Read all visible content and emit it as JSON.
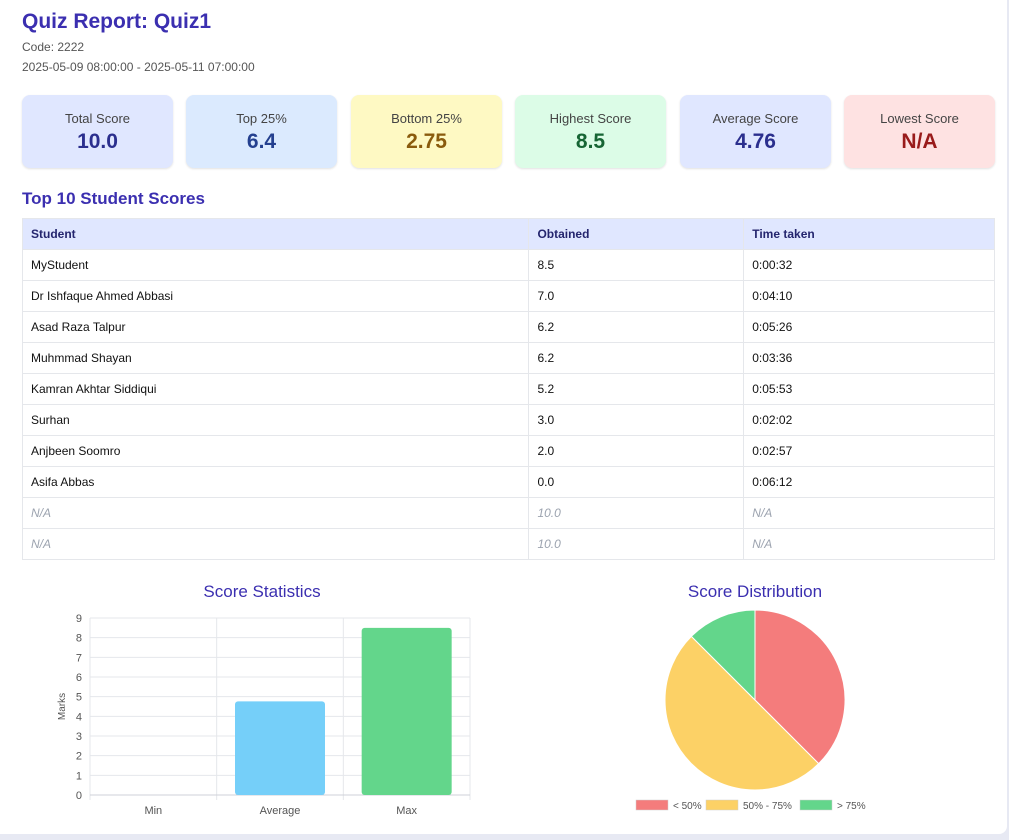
{
  "header": {
    "title": "Quiz Report: Quiz1",
    "code": "Code: 2222",
    "date_range": "2025-05-09 08:00:00 - 2025-05-11 07:00:00"
  },
  "cards": [
    {
      "label": "Total Score",
      "value": "10.0",
      "bg": "#e0e7ff",
      "color": "#2b2f8e"
    },
    {
      "label": "Top 25%",
      "value": "6.4",
      "bg": "#dbeafe",
      "color": "#24408f"
    },
    {
      "label": "Bottom 25%",
      "value": "2.75",
      "bg": "#fef9c3",
      "color": "#8a5b0d"
    },
    {
      "label": "Highest Score",
      "value": "8.5",
      "bg": "#dcfce7",
      "color": "#166534"
    },
    {
      "label": "Average Score",
      "value": "4.76",
      "bg": "#e0e7ff",
      "color": "#2b2f8e"
    },
    {
      "label": "Lowest Score",
      "value": "N/A",
      "bg": "#fee2e2",
      "color": "#991b1b"
    }
  ],
  "top_scores": {
    "title": "Top 10 Student Scores",
    "columns": [
      "Student",
      "Obtained",
      "Time taken"
    ],
    "rows": [
      [
        "MyStudent",
        "8.5",
        "0:00:32"
      ],
      [
        "Dr Ishfaque Ahmed Abbasi",
        "7.0",
        "0:04:10"
      ],
      [
        "Asad Raza Talpur",
        "6.2",
        "0:05:26"
      ],
      [
        "Muhmmad Shayan",
        "6.2",
        "0:03:36"
      ],
      [
        "Kamran Akhtar Siddiqui",
        "5.2",
        "0:05:53"
      ],
      [
        "Surhan",
        "3.0",
        "0:02:02"
      ],
      [
        "Anjbeen Soomro",
        "2.0",
        "0:02:57"
      ],
      [
        "Asifa Abbas",
        "0.0",
        "0:06:12"
      ],
      [
        "N/A",
        "10.0",
        "N/A"
      ],
      [
        "N/A",
        "10.0",
        "N/A"
      ]
    ]
  },
  "chart_data": [
    {
      "type": "bar",
      "title": "Score Statistics",
      "categories": [
        "Min",
        "Average",
        "Max"
      ],
      "values": [
        0,
        4.76,
        8.5
      ],
      "colors": [
        "#f87171",
        "#75cff9",
        "#63d68b"
      ],
      "ylabel": "Marks",
      "xlabel": "",
      "ylim": [
        0,
        9
      ],
      "yticks": [
        "0",
        "1",
        "2",
        "3",
        "4",
        "5",
        "6",
        "7",
        "8",
        "9"
      ],
      "grid": true
    },
    {
      "type": "pie",
      "title": "Score Distribution",
      "labels": [
        "< 50%",
        "50% - 75%",
        "> 75%"
      ],
      "values": [
        3,
        4,
        1
      ],
      "colors": [
        "#f47c7c",
        "#fcd166",
        "#63d68b"
      ],
      "legend": "bottom"
    }
  ]
}
